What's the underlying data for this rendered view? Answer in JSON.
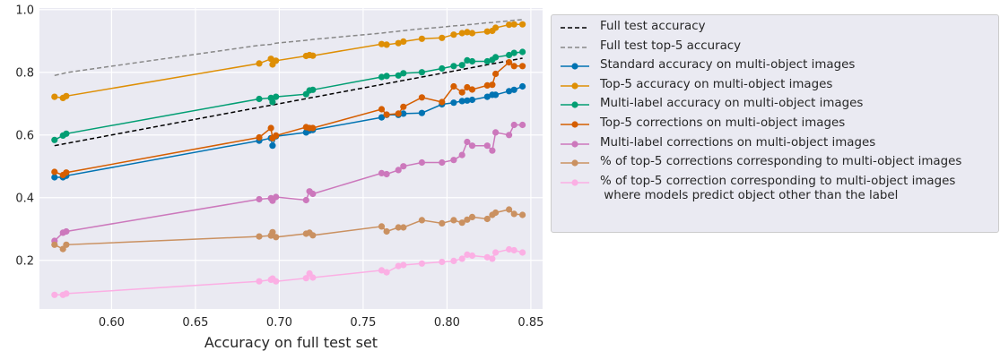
{
  "chart_data": {
    "type": "line",
    "xlabel": "Accuracy on full test set",
    "ylabel": "",
    "xlim": [
      0.557,
      0.857
    ],
    "ylim": [
      0.045,
      1.005
    ],
    "xticks": [
      "0.60",
      "0.65",
      "0.70",
      "0.75",
      "0.80",
      "0.85"
    ],
    "yticks": [
      "0.2",
      "0.4",
      "0.6",
      "0.8",
      "1.0"
    ],
    "xtick_values": [
      0.6,
      0.65,
      0.7,
      0.75,
      0.8,
      0.85
    ],
    "ytick_values": [
      0.2,
      0.4,
      0.6,
      0.8,
      1.0
    ],
    "grid": true,
    "legend_position": "outside right",
    "x": [
      0.566,
      0.571,
      0.573,
      0.688,
      0.695,
      0.696,
      0.698,
      0.716,
      0.718,
      0.72,
      0.761,
      0.764,
      0.771,
      0.774,
      0.785,
      0.797,
      0.804,
      0.809,
      0.812,
      0.815,
      0.824,
      0.827,
      0.829,
      0.837,
      0.84,
      0.845
    ],
    "series": [
      {
        "name": "Full test accuracy",
        "style": "dashed",
        "color": "#000000",
        "values": [
          0.566,
          0.571,
          0.573,
          0.688,
          0.695,
          0.696,
          0.698,
          0.716,
          0.718,
          0.72,
          0.761,
          0.764,
          0.771,
          0.774,
          0.785,
          0.797,
          0.804,
          0.809,
          0.812,
          0.815,
          0.824,
          0.827,
          0.829,
          0.837,
          0.84,
          0.845
        ]
      },
      {
        "name": "Full test top-5 accuracy",
        "style": "dashed",
        "color": "#888888",
        "values": [
          0.79,
          0.796,
          0.799,
          0.886,
          0.889,
          0.891,
          0.893,
          0.902,
          0.903,
          0.905,
          0.925,
          0.927,
          0.931,
          0.933,
          0.939,
          0.944,
          0.948,
          0.95,
          0.952,
          0.953,
          0.958,
          0.959,
          0.96,
          0.964,
          0.966,
          0.968
        ]
      },
      {
        "name": "Standard accuracy on multi-object images",
        "style": "solid",
        "color": "#0173b2",
        "values": [
          0.465,
          0.465,
          0.47,
          0.582,
          0.59,
          0.566,
          0.596,
          0.608,
          0.614,
          0.616,
          0.656,
          0.664,
          0.664,
          0.668,
          0.67,
          0.698,
          0.703,
          0.708,
          0.71,
          0.712,
          0.722,
          0.728,
          0.728,
          0.74,
          0.744,
          0.755
        ]
      },
      {
        "name": "Top-5 accuracy on multi-object images",
        "style": "solid",
        "color": "#de8f05",
        "values": [
          0.722,
          0.718,
          0.724,
          0.828,
          0.843,
          0.825,
          0.837,
          0.852,
          0.855,
          0.853,
          0.89,
          0.888,
          0.893,
          0.898,
          0.907,
          0.91,
          0.92,
          0.925,
          0.928,
          0.925,
          0.93,
          0.932,
          0.942,
          0.952,
          0.953,
          0.953
        ]
      },
      {
        "name": "Multi-label accuracy on multi-object images",
        "style": "solid",
        "color": "#029e73",
        "values": [
          0.584,
          0.598,
          0.604,
          0.715,
          0.718,
          0.705,
          0.722,
          0.73,
          0.742,
          0.744,
          0.785,
          0.788,
          0.79,
          0.797,
          0.8,
          0.812,
          0.82,
          0.823,
          0.838,
          0.835,
          0.835,
          0.84,
          0.848,
          0.855,
          0.862,
          0.865
        ]
      },
      {
        "name": "Top-5 corrections on multi-object images",
        "style": "solid",
        "color": "#d55e00",
        "values": [
          0.482,
          0.472,
          0.48,
          0.592,
          0.622,
          0.59,
          0.598,
          0.625,
          0.622,
          0.622,
          0.682,
          0.665,
          0.668,
          0.69,
          0.72,
          0.705,
          0.755,
          0.736,
          0.752,
          0.745,
          0.758,
          0.76,
          0.795,
          0.832,
          0.82,
          0.82
        ]
      },
      {
        "name": "Multi-label corrections on multi-object images",
        "style": "solid",
        "color": "#cc78bc",
        "values": [
          0.262,
          0.288,
          0.292,
          0.395,
          0.398,
          0.39,
          0.402,
          0.392,
          0.42,
          0.412,
          0.478,
          0.475,
          0.488,
          0.5,
          0.512,
          0.512,
          0.52,
          0.536,
          0.578,
          0.566,
          0.566,
          0.55,
          0.608,
          0.6,
          0.632,
          0.632
        ]
      },
      {
        "name": "% of top-5 corrections corresponding to multi-object images",
        "style": "solid",
        "color": "#ca9161",
        "values": [
          0.25,
          0.236,
          0.25,
          0.276,
          0.279,
          0.29,
          0.274,
          0.285,
          0.288,
          0.28,
          0.308,
          0.292,
          0.305,
          0.305,
          0.328,
          0.318,
          0.328,
          0.32,
          0.33,
          0.338,
          0.332,
          0.345,
          0.352,
          0.362,
          0.348,
          0.345
        ]
      },
      {
        "name": "% of top-5 correction corresponding to multi-object images\n where models predict object other than the label",
        "style": "solid",
        "color": "#fbafe4",
        "values": [
          0.09,
          0.09,
          0.094,
          0.133,
          0.138,
          0.142,
          0.133,
          0.143,
          0.158,
          0.145,
          0.168,
          0.162,
          0.182,
          0.185,
          0.19,
          0.195,
          0.198,
          0.205,
          0.218,
          0.215,
          0.21,
          0.205,
          0.225,
          0.235,
          0.232,
          0.225
        ]
      }
    ]
  },
  "colors": {
    "plot_background": "#eaeaf2",
    "grid": "#ffffff"
  }
}
